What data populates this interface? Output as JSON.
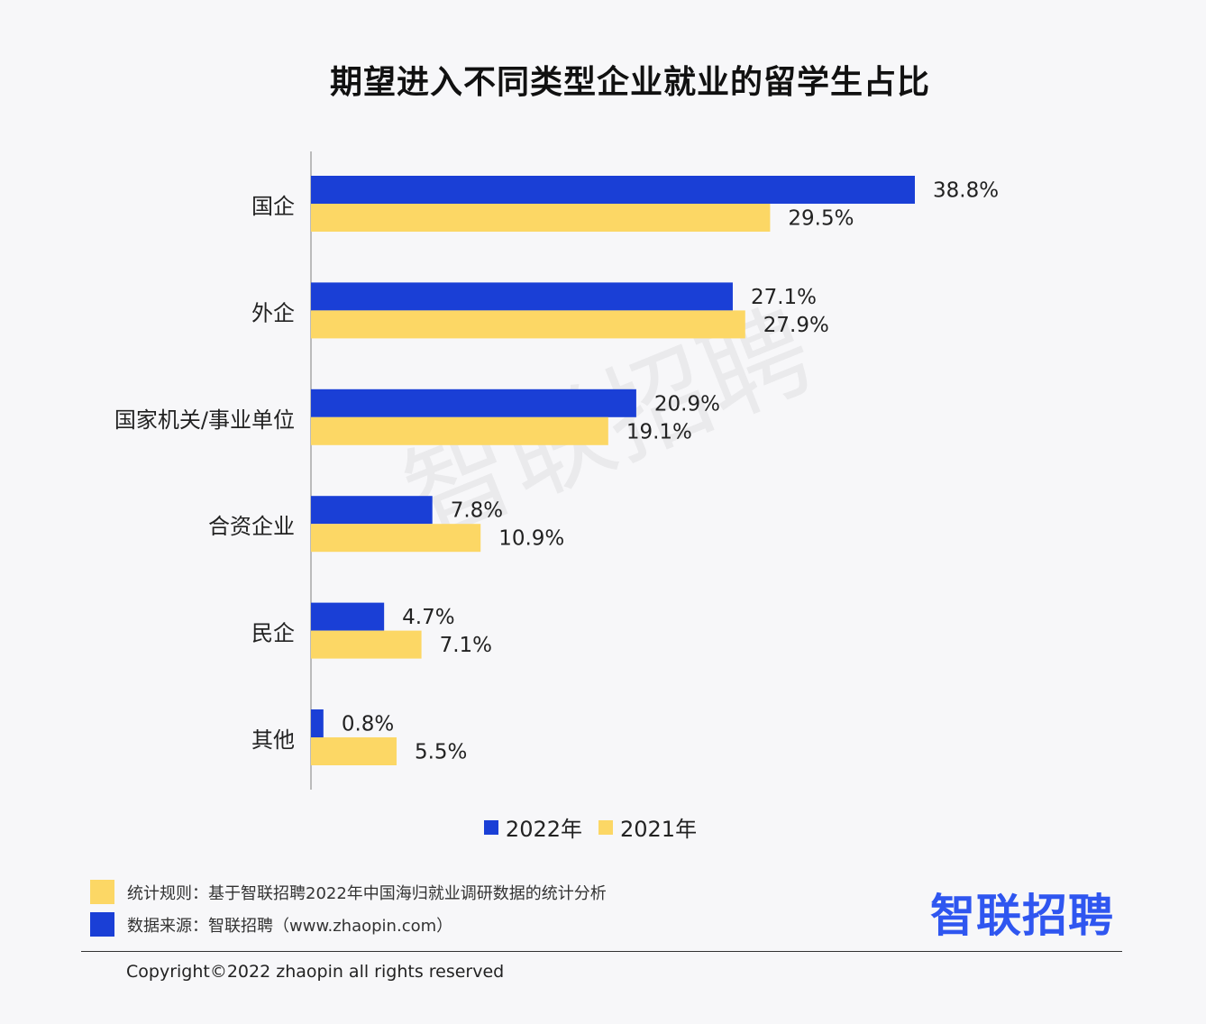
{
  "chart_data": {
    "type": "bar",
    "orientation": "horizontal",
    "title": "期望进入不同类型企业就业的留学生占比",
    "categories": [
      "国企",
      "外企",
      "国家机关/事业单位",
      "合资企业",
      "民企",
      "其他"
    ],
    "series": [
      {
        "name": "2022年",
        "values": [
          38.8,
          27.1,
          20.9,
          7.8,
          4.7,
          0.8
        ],
        "labels": [
          "38.8%",
          "27.1%",
          "20.9%",
          "7.8%",
          "4.7%",
          "0.8%"
        ],
        "color": "#1a3fd6"
      },
      {
        "name": "2021年",
        "values": [
          29.5,
          27.9,
          19.1,
          10.9,
          7.1,
          5.5
        ],
        "labels": [
          "29.5%",
          "27.9%",
          "19.1%",
          "10.9%",
          "7.1%",
          "5.5%"
        ],
        "color": "#fcd765"
      }
    ],
    "xlim": [
      0,
      38.8
    ],
    "grid": false,
    "legend": "bottom"
  },
  "notes": {
    "rule": "统计规则：基于智联招聘2022年中国海归就业调研数据的统计分析",
    "source": "数据来源：智联招聘（www.zhaopin.com）",
    "rule_color": "#fcd765",
    "source_color": "#1a3fd6"
  },
  "brand": "智联招聘",
  "watermark": "智联招聘",
  "copyright": "Copyright©2022 zhaopin all rights reserved"
}
